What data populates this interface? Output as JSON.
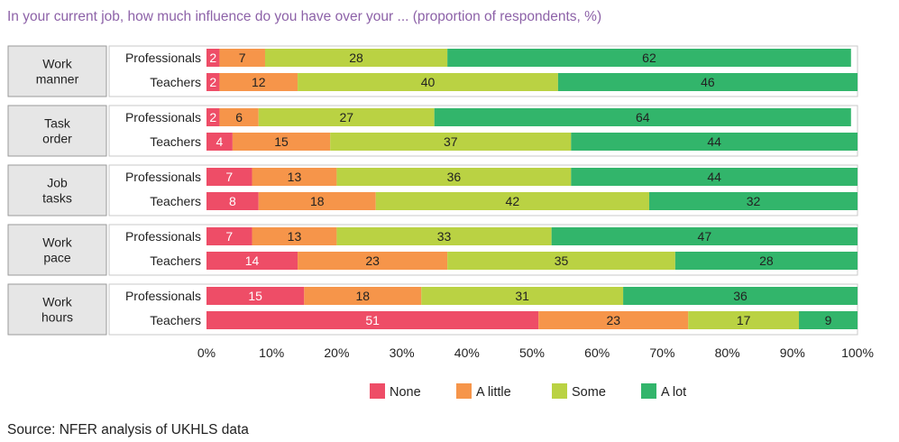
{
  "title": "In your current job, how much influence do you have over your ... (proportion of respondents, %)",
  "source": "Source: NFER analysis of UKHLS data",
  "chart_data": {
    "type": "bar",
    "orientation": "horizontal",
    "stacked": true,
    "title": "In your current job, how much influence do you have over your ... (proportion of respondents, %)",
    "groups": [
      {
        "label": [
          "Work",
          "manner"
        ],
        "rows": [
          {
            "label": "Professionals",
            "values": [
              2,
              7,
              28,
              62
            ]
          },
          {
            "label": "Teachers",
            "values": [
              2,
              12,
              40,
              46
            ]
          }
        ]
      },
      {
        "label": [
          "Task",
          "order"
        ],
        "rows": [
          {
            "label": "Professionals",
            "values": [
              2,
              6,
              27,
              64
            ]
          },
          {
            "label": "Teachers",
            "values": [
              4,
              15,
              37,
              44
            ]
          }
        ]
      },
      {
        "label": [
          "Job",
          "tasks"
        ],
        "rows": [
          {
            "label": "Professionals",
            "values": [
              7,
              13,
              36,
              44
            ]
          },
          {
            "label": "Teachers",
            "values": [
              8,
              18,
              42,
              32
            ]
          }
        ]
      },
      {
        "label": [
          "Work",
          "pace"
        ],
        "rows": [
          {
            "label": "Professionals",
            "values": [
              7,
              13,
              33,
              47
            ]
          },
          {
            "label": "Teachers",
            "values": [
              14,
              23,
              35,
              28
            ]
          }
        ]
      },
      {
        "label": [
          "Work",
          "hours"
        ],
        "rows": [
          {
            "label": "Professionals",
            "values": [
              15,
              18,
              31,
              36
            ]
          },
          {
            "label": "Teachers",
            "values": [
              51,
              23,
              17,
              9
            ]
          }
        ]
      }
    ],
    "series": [
      {
        "name": "None",
        "color": "#ee4d67"
      },
      {
        "name": "A little",
        "color": "#f6954a"
      },
      {
        "name": "Some",
        "color": "#bad243"
      },
      {
        "name": "A lot",
        "color": "#32b56b"
      }
    ],
    "xlim": [
      0,
      100
    ],
    "xticks": [
      "0%",
      "10%",
      "20%",
      "30%",
      "40%",
      "50%",
      "60%",
      "70%",
      "80%",
      "90%",
      "100%"
    ],
    "legend_position": "bottom"
  }
}
